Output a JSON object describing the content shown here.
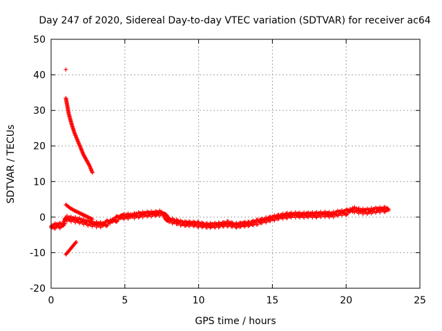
{
  "chart_data": {
    "type": "scatter",
    "title": "Day 247 of 2020, Sidereal Day-to-day VTEC variation (SDTVAR) for receiver ac64",
    "xlabel": "GPS time / hours",
    "ylabel": "SDTVAR / TECUs",
    "xlim": [
      0,
      25
    ],
    "ylim": [
      -20,
      50
    ],
    "xticks": [
      0,
      5,
      10,
      15,
      20,
      25
    ],
    "yticks": [
      -20,
      -10,
      0,
      10,
      20,
      30,
      40,
      50
    ],
    "grid": true,
    "legend": "none",
    "marker": "+",
    "color": "#ff0000",
    "series": [
      {
        "name": "band-ongoing",
        "x": [
          0.0,
          0.4,
          0.8,
          1.0,
          1.5,
          2.0,
          2.5,
          3.0,
          3.5,
          4.0,
          4.8,
          5.5,
          6.0,
          6.5,
          7.0,
          7.5,
          8.0,
          8.5,
          9.0,
          9.5,
          10.0,
          10.5,
          11.0,
          11.5,
          12.0,
          12.5,
          13.0,
          13.5,
          14.0,
          14.5,
          15.0,
          15.5,
          16.0,
          16.5,
          17.0,
          17.5,
          18.0,
          18.5,
          19.0,
          19.5,
          20.0,
          20.5,
          21.0,
          21.5,
          22.0,
          22.5,
          22.9
        ],
        "y": [
          -3.0,
          -2.5,
          -2.5,
          -0.5,
          -0.8,
          -1.2,
          -1.8,
          -2.2,
          -2.3,
          -1.5,
          0.0,
          0.2,
          0.5,
          0.7,
          0.8,
          1.0,
          -1.0,
          -1.5,
          -2.0,
          -2.0,
          -2.2,
          -2.5,
          -2.5,
          -2.3,
          -2.0,
          -2.5,
          -2.2,
          -2.0,
          -1.5,
          -1.0,
          -0.5,
          0.0,
          0.3,
          0.5,
          0.4,
          0.5,
          0.5,
          0.7,
          0.5,
          1.0,
          1.2,
          2.0,
          1.5,
          1.5,
          1.8,
          2.0,
          2.0
        ]
      },
      {
        "name": "arc-upper",
        "x": [
          1.0,
          1.2,
          1.4,
          1.6,
          1.8,
          2.0,
          2.2,
          2.4,
          2.6,
          2.8
        ],
        "y": [
          33.5,
          29.0,
          26.0,
          23.5,
          21.5,
          19.5,
          17.5,
          16.0,
          14.5,
          12.5
        ]
      },
      {
        "name": "arc-middle",
        "x": [
          1.0,
          1.3,
          1.6,
          1.9,
          2.2,
          2.5,
          2.8
        ],
        "y": [
          3.5,
          2.5,
          1.8,
          1.2,
          0.6,
          0.0,
          -0.6
        ]
      },
      {
        "name": "arc-lower",
        "x": [
          1.0,
          1.2,
          1.4,
          1.6,
          1.7
        ],
        "y": [
          -10.5,
          -9.5,
          -8.5,
          -7.5,
          -7.0
        ]
      },
      {
        "name": "outlier",
        "x": [
          1.0
        ],
        "y": [
          41.5
        ]
      }
    ]
  }
}
